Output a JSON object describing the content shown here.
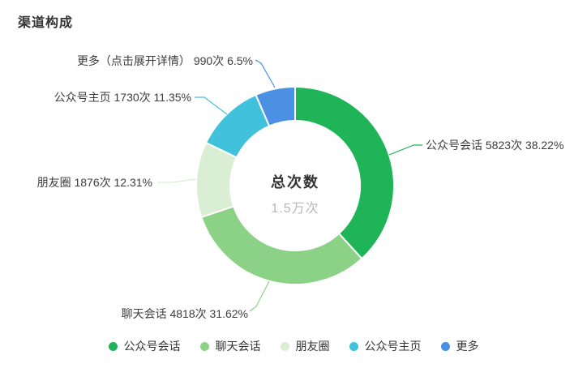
{
  "title": "渠道构成",
  "center": {
    "label": "总次数",
    "value": "1.5万次"
  },
  "chart_data": {
    "type": "pie",
    "subtype": "donut",
    "title": "渠道构成",
    "total_label": "总次数",
    "total_value": "1.5万次",
    "legend_position": "bottom",
    "slices": [
      {
        "name": "公众号会话",
        "count": 5823,
        "count_label": "5823次",
        "percent": 38.22,
        "display": "公众号会话 5823次 38.22%",
        "color": "#1fb457"
      },
      {
        "name": "聊天会话",
        "count": 4818,
        "count_label": "4818次",
        "percent": 31.62,
        "display": "聊天会话 4818次 31.62%",
        "color": "#8bd186"
      },
      {
        "name": "朋友圈",
        "count": 1876,
        "count_label": "1876次",
        "percent": 12.31,
        "display": "朋友圈 1876次 12.31%",
        "color": "#d9eed3"
      },
      {
        "name": "公众号主页",
        "count": 1730,
        "count_label": "1730次",
        "percent": 11.35,
        "display": "公众号主页 1730次 11.35%",
        "color": "#40c1dc"
      },
      {
        "name": "更多",
        "label_name": "更多（点击展开详情）",
        "count": 990,
        "count_label": "990次",
        "percent": 6.5,
        "display": "更多（点击展开详情） 990次 6.5%",
        "color": "#4c90e4"
      }
    ],
    "legend": [
      "公众号会话",
      "聊天会话",
      "朋友圈",
      "公众号主页",
      "更多"
    ]
  }
}
